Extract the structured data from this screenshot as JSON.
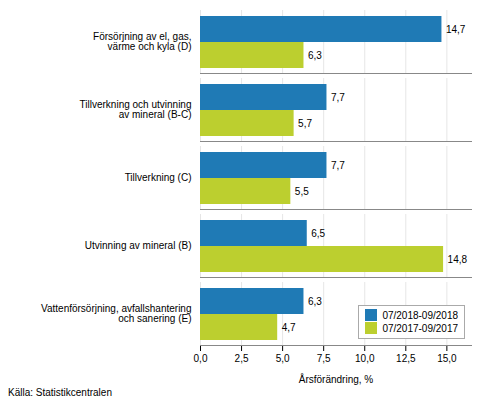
{
  "chart_data": {
    "type": "bar",
    "orientation": "horizontal",
    "categories": [
      "Försörjning av el, gas,\nvärme och kyla (D)",
      "Tillverkning och utvinning\nav mineral (B-C)",
      "Tillverkning (C)",
      "Utvinning av mineral (B)",
      "Vattenförsörjning, avfallshantering\noch sanering (E)"
    ],
    "series": [
      {
        "name": "07/2018-09/2018",
        "color": "#1f7ab5",
        "values": [
          14.7,
          7.7,
          7.7,
          6.5,
          6.3
        ],
        "value_labels": [
          "14,7",
          "7,7",
          "7,7",
          "6,5",
          "6,3"
        ]
      },
      {
        "name": "07/2017-09/2017",
        "color": "#bccf2f",
        "values": [
          6.3,
          5.7,
          5.5,
          14.8,
          4.7
        ],
        "value_labels": [
          "6,3",
          "5,7",
          "5,5",
          "14,8",
          "4,7"
        ]
      }
    ],
    "xlabel": "Årsförändring, %",
    "xlim": [
      0,
      16.5
    ],
    "xticks": [
      {
        "value": 0.0,
        "label": "0,0"
      },
      {
        "value": 2.5,
        "label": "2,5"
      },
      {
        "value": 5.0,
        "label": "5,0"
      },
      {
        "value": 7.5,
        "label": "7,5"
      },
      {
        "value": 10.0,
        "label": "10,0"
      },
      {
        "value": 12.5,
        "label": "12,5"
      },
      {
        "value": 15.0,
        "label": "15,0"
      }
    ],
    "grid": true,
    "legend": "lower right",
    "data_labels": true,
    "source": "Källa: Statistikcentralen"
  }
}
